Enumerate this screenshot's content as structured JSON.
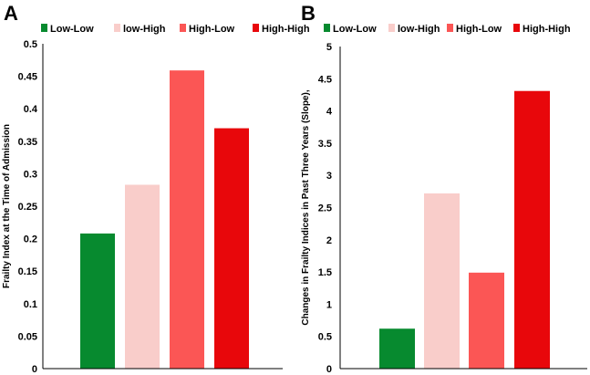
{
  "chart_data": [
    {
      "panel_label": "A",
      "type": "bar",
      "categories": [
        "Low-Low",
        "low-High",
        "High-Low",
        "High-High"
      ],
      "values": [
        0.208,
        0.283,
        0.459,
        0.37
      ],
      "colors": [
        "#078a2f",
        "#f9cdca",
        "#fb5655",
        "#e8070b"
      ],
      "title": "",
      "xlabel": "",
      "ylabel": "Frailty Index at the Time of Admission",
      "ylim": [
        0,
        0.5
      ],
      "yticks": [
        "0",
        "0.05",
        "0.1",
        "0.15",
        "0.2",
        "0.25",
        "0.3",
        "0.35",
        "0.4",
        "0.45",
        "0.5"
      ],
      "legend": [
        "Low-Low",
        "low-High",
        "High-Low",
        "High-High"
      ],
      "legend_position": "top",
      "grid": false
    },
    {
      "panel_label": "B",
      "type": "bar",
      "categories": [
        "Low-Low",
        "low-High",
        "High-Low",
        "High-High"
      ],
      "values": [
        0.62,
        2.72,
        1.49,
        4.31
      ],
      "colors": [
        "#078a2f",
        "#f9cdca",
        "#fb5655",
        "#e8070b"
      ],
      "title": "",
      "xlabel": "",
      "ylabel": "Changes in Frailty Indices in Past Three Years (Slope),",
      "ylim": [
        0,
        5
      ],
      "yticks": [
        "0",
        "0.5",
        "1",
        "1.5",
        "2",
        "2.5",
        "3",
        "3.5",
        "4",
        "4.5",
        "5"
      ],
      "legend": [
        "Low-Low",
        "low-High",
        "High-Low",
        "High-High"
      ],
      "legend_position": "top",
      "grid": false
    }
  ]
}
